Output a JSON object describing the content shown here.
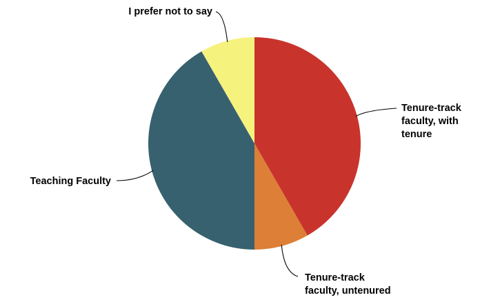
{
  "chart_data": {
    "type": "pie",
    "title": "",
    "legend": "none",
    "slices": [
      {
        "label": [
          "Tenure-track",
          "faculty, with",
          "tenure"
        ],
        "value": 41.7,
        "color": "#c8342c"
      },
      {
        "label": [
          "Tenure-track",
          "faculty, untenured"
        ],
        "value": 8.3,
        "color": "#dd7f36"
      },
      {
        "label": [
          "Teaching Faculty"
        ],
        "value": 41.7,
        "color": "#37616f"
      },
      {
        "label": [
          "I prefer not to say"
        ],
        "value": 8.3,
        "color": "#f6f27e"
      }
    ]
  }
}
